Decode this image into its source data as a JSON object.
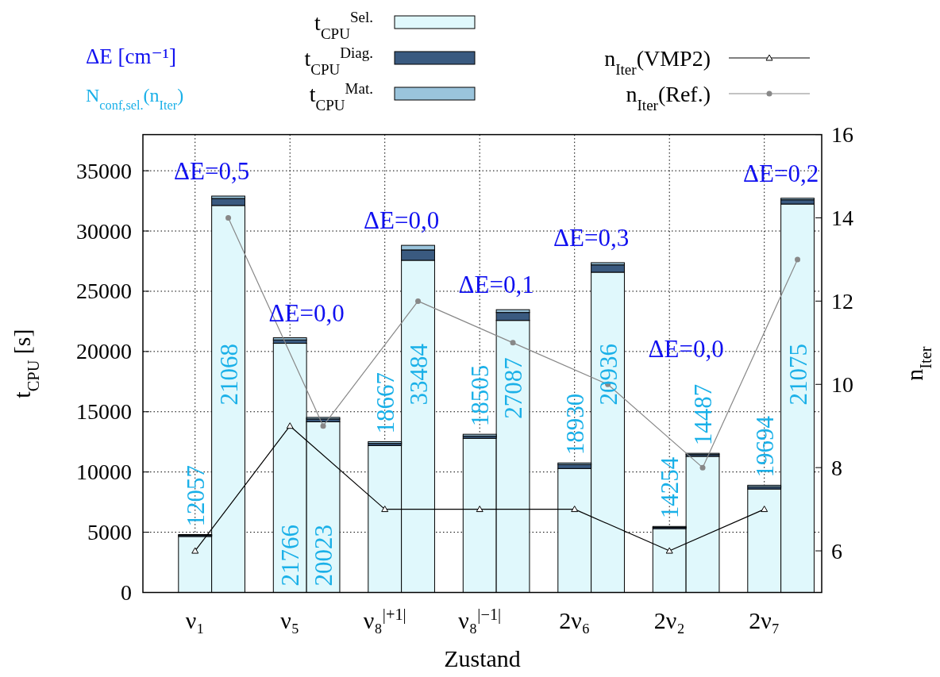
{
  "chart_data": {
    "type": "bar",
    "xlabel": "Zustand",
    "ylabel": "t$_{CPU}$ [s]",
    "y2label": "n$_{Iter}$",
    "categories": [
      "ν₁",
      null,
      "ν₅",
      null,
      "ν₈$^{|+1|}$",
      null,
      "ν₈$^{|−1|}$",
      null,
      "2ν₆",
      null,
      "2ν₂",
      null,
      "2ν₇",
      null
    ],
    "ylim": [
      0,
      38000
    ],
    "yticks": [
      0,
      5000,
      10000,
      15000,
      20000,
      25000,
      30000,
      35000
    ],
    "y2lim": [
      5,
      16
    ],
    "y2ticks": [
      6,
      8,
      10,
      12,
      14,
      16
    ],
    "grid": true,
    "legend": "top",
    "stacked": true,
    "series": [
      {
        "name": "t$_{CPU}$$^{Sel.}$",
        "color": "#e0f8fc",
        "values": [
          4650,
          32120,
          20680,
          14170,
          12190,
          27570,
          12800,
          22580,
          10290,
          26580,
          5300,
          11300,
          8590,
          32240
        ]
      },
      {
        "name": "t$_{CPU}$$^{Diag.}$",
        "color": "#3a5a80",
        "values": [
          100,
          580,
          280,
          230,
          180,
          860,
          180,
          660,
          330,
          610,
          100,
          150,
          180,
          350
        ]
      },
      {
        "name": "t$_{CPU}$$^{Mat.}$",
        "color": "#9ac4dc",
        "values": [
          60,
          200,
          180,
          130,
          150,
          380,
          150,
          230,
          130,
          180,
          80,
          100,
          130,
          130
        ]
      },
      {
        "type": "line",
        "axis": "y2",
        "name": "n$_{Iter}$(VMP2)",
        "color": "#000000",
        "marker": "triangle",
        "values": [
          6,
          null,
          9,
          null,
          7,
          null,
          7,
          null,
          7,
          null,
          6,
          null,
          7,
          null
        ]
      },
      {
        "type": "line",
        "axis": "y2",
        "name": "n$_{Iter}$(Ref.)",
        "color": "#888888",
        "marker": "circle",
        "values": [
          null,
          14,
          null,
          9,
          null,
          12,
          null,
          11,
          null,
          10,
          null,
          8,
          null,
          13
        ]
      }
    ],
    "annotations": [
      "ΔE [cm⁻¹]",
      "N$_{conf,sel.}$(n$_{Iter}$)",
      "ΔE=0,5",
      "ΔE=0,0",
      "ΔE=0,0",
      "ΔE=0,1",
      "ΔE=0,3",
      "ΔE=0,0",
      "ΔE=0,2",
      "12057",
      "21068",
      "21766",
      "20023",
      "18667",
      "33484",
      "18505",
      "27087",
      "18930",
      "20936",
      "14254",
      "14487",
      "19694",
      "21075"
    ]
  }
}
